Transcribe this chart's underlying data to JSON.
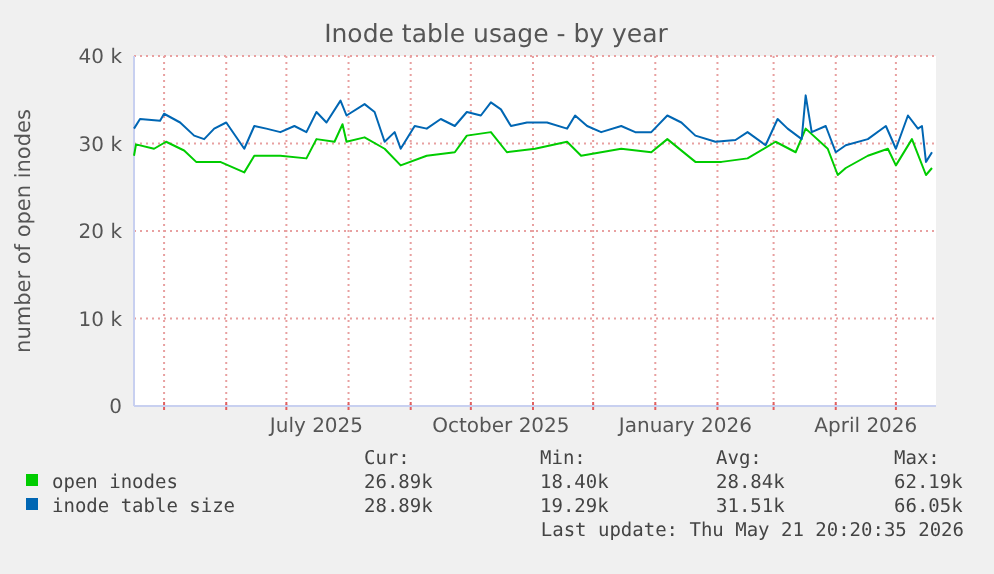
{
  "chart_data": {
    "type": "line",
    "title": "Inode table usage - by year",
    "ylabel": "number of open inodes",
    "xlim": [
      "2025-04-16",
      "2026-05-21"
    ],
    "xticks": [
      {
        "value": "2025-05-01",
        "label": null
      },
      {
        "value": "2025-06-01",
        "label": null
      },
      {
        "value": "2025-07-01",
        "label": null
      },
      {
        "value": "2025-07-16",
        "label": "July 2025"
      },
      {
        "value": "2025-08-01",
        "label": null
      },
      {
        "value": "2025-09-01",
        "label": null
      },
      {
        "value": "2025-10-01",
        "label": null
      },
      {
        "value": "2025-10-16",
        "label": "October 2025"
      },
      {
        "value": "2025-11-01",
        "label": null
      },
      {
        "value": "2025-12-01",
        "label": null
      },
      {
        "value": "2026-01-01",
        "label": null
      },
      {
        "value": "2026-01-16",
        "label": "January 2026"
      },
      {
        "value": "2026-02-01",
        "label": null
      },
      {
        "value": "2026-03-01",
        "label": null
      },
      {
        "value": "2026-04-01",
        "label": null
      },
      {
        "value": "2026-04-16",
        "label": "April 2026"
      },
      {
        "value": "2026-05-01",
        "label": null
      }
    ],
    "ylim": [
      0,
      40000
    ],
    "yticks": [
      0,
      {
        "value": 10000,
        "label": "10 k"
      },
      {
        "value": 20000,
        "label": "20 k"
      },
      {
        "value": 30000,
        "label": "30 k"
      },
      {
        "value": 40000,
        "label": "40 k"
      }
    ],
    "grid": true,
    "legend": "bottom",
    "marker": "none",
    "line_style": "solid",
    "series": [
      {
        "name": "open inodes",
        "color": "#00cc00",
        "x": [
          "2025-04-16",
          "2025-04-17",
          "2025-04-26",
          "2025-05-02",
          "2025-05-11",
          "2025-05-17",
          "2025-05-29",
          "2025-06-10",
          "2025-06-15",
          "2025-06-28",
          "2025-07-11",
          "2025-07-16",
          "2025-07-25",
          "2025-07-29",
          "2025-07-31",
          "2025-08-09",
          "2025-08-19",
          "2025-08-27",
          "2025-09-09",
          "2025-09-23",
          "2025-09-29",
          "2025-10-11",
          "2025-10-19",
          "2025-11-02",
          "2025-11-18",
          "2025-11-25",
          "2025-12-15",
          "2025-12-30",
          "2026-01-07",
          "2026-01-21",
          "2026-02-03",
          "2026-02-16",
          "2026-03-02",
          "2026-03-12",
          "2026-03-17",
          "2026-03-28",
          "2026-04-02",
          "2026-04-06",
          "2026-04-17",
          "2026-04-27",
          "2026-05-01",
          "2026-05-09",
          "2026-05-16",
          "2026-05-19"
        ],
        "values": [
          28600,
          29900,
          29400,
          30200,
          29200,
          27900,
          27900,
          26700,
          28600,
          28600,
          28300,
          30500,
          30200,
          32200,
          30200,
          30700,
          29400,
          27500,
          28600,
          29000,
          30900,
          31300,
          29000,
          29400,
          30200,
          28600,
          29400,
          29000,
          30500,
          27900,
          27900,
          28300,
          30200,
          29000,
          31700,
          29400,
          26400,
          27200,
          28600,
          29400,
          27500,
          30500,
          26400,
          27200
        ]
      },
      {
        "name": "inode table size",
        "color": "#0066b3",
        "x": [
          "2025-04-16",
          "2025-04-19",
          "2025-04-29",
          "2025-05-01",
          "2025-05-09",
          "2025-05-16",
          "2025-05-21",
          "2025-05-26",
          "2025-06-01",
          "2025-06-10",
          "2025-06-15",
          "2025-06-21",
          "2025-06-28",
          "2025-07-05",
          "2025-07-11",
          "2025-07-16",
          "2025-07-21",
          "2025-07-28",
          "2025-07-31",
          "2025-08-09",
          "2025-08-14",
          "2025-08-19",
          "2025-08-24",
          "2025-08-27",
          "2025-09-03",
          "2025-09-09",
          "2025-09-16",
          "2025-09-23",
          "2025-09-29",
          "2025-10-06",
          "2025-10-11",
          "2025-10-16",
          "2025-10-21",
          "2025-10-29",
          "2025-11-08",
          "2025-11-18",
          "2025-11-22",
          "2025-11-28",
          "2025-12-05",
          "2025-12-15",
          "2025-12-22",
          "2025-12-30",
          "2026-01-07",
          "2026-01-14",
          "2026-01-21",
          "2026-01-31",
          "2026-02-10",
          "2026-02-16",
          "2026-02-25",
          "2026-03-03",
          "2026-03-08",
          "2026-03-15",
          "2026-03-17",
          "2026-03-20",
          "2026-03-27",
          "2026-04-01",
          "2026-04-06",
          "2026-04-17",
          "2026-04-26",
          "2026-05-01",
          "2026-05-07",
          "2026-05-12",
          "2026-05-14",
          "2026-05-16",
          "2026-05-19"
        ],
        "values": [
          31700,
          32800,
          32600,
          33400,
          32400,
          30900,
          30500,
          31700,
          32400,
          29400,
          32000,
          31700,
          31300,
          32000,
          31300,
          33600,
          32400,
          34900,
          33200,
          34500,
          33600,
          30200,
          31300,
          29400,
          32000,
          31700,
          32800,
          32000,
          33600,
          33200,
          34700,
          33900,
          32000,
          32400,
          32400,
          31700,
          33200,
          32000,
          31300,
          32000,
          31300,
          31300,
          33200,
          32400,
          30900,
          30200,
          30400,
          31300,
          29800,
          32800,
          31700,
          30500,
          35500,
          31300,
          32000,
          29000,
          29800,
          30500,
          32000,
          29400,
          33200,
          31700,
          32000,
          27900,
          29000
        ]
      }
    ],
    "annotations": [
      "Cur:",
      "Min:",
      "Avg:",
      "Max:",
      "26.89k",
      "18.40k",
      "28.84k",
      "62.19k",
      "28.89k",
      "19.29k",
      "31.51k",
      "66.05k",
      "Last update: Thu May 21 20:20:35 2026"
    ]
  }
}
